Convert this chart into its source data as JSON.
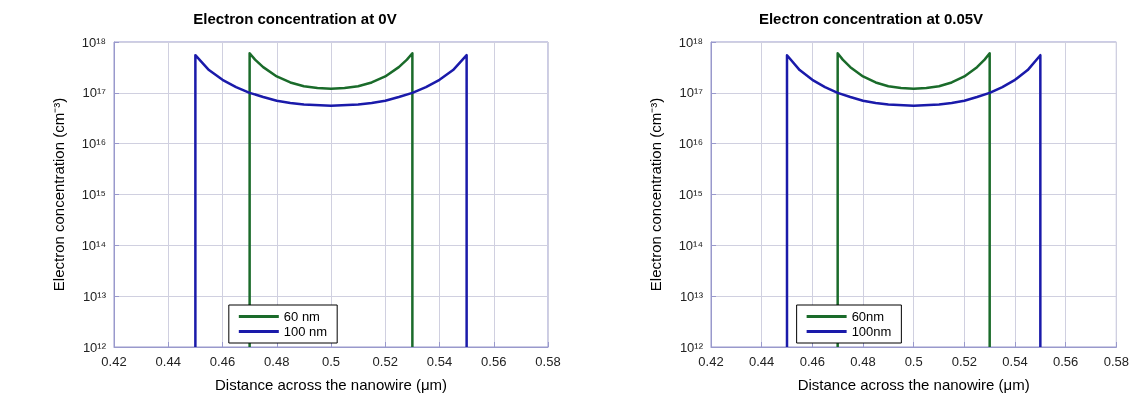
{
  "chart_data": [
    {
      "type": "line",
      "title": "Electron concentration at 0V",
      "xlabel": "Distance across the nanowire (μm)",
      "ylabel": "Electron concentration (cm⁻³)",
      "log": "y",
      "grid": true,
      "legend": "bottom",
      "line_style": "solid",
      "marker": "none",
      "xlim": [
        0.42,
        0.58
      ],
      "xticks": [
        0.42,
        0.44,
        0.46,
        0.48,
        0.5,
        0.52,
        0.54,
        0.56,
        0.58
      ],
      "ylim": [
        1000000000000.0,
        1e+18
      ],
      "yticks": [
        {
          "value": 1000000000000.0,
          "label": "10¹²"
        },
        {
          "value": 10000000000000.0,
          "label": "10¹³"
        },
        {
          "value": 100000000000000.0,
          "label": "10¹⁴"
        },
        {
          "value": 1000000000000000.0,
          "label": "10¹⁵"
        },
        {
          "value": 1e+16,
          "label": "10¹⁶"
        },
        {
          "value": 1e+17,
          "label": "10¹⁷"
        },
        {
          "value": 1e+18,
          "label": "10¹⁸"
        }
      ],
      "series": [
        {
          "name": "60 nm",
          "color": "#1a6b2a",
          "x": [
            0.47,
            0.47,
            0.472,
            0.475,
            0.48,
            0.485,
            0.49,
            0.495,
            0.5,
            0.505,
            0.51,
            0.515,
            0.52,
            0.525,
            0.528,
            0.53,
            0.53
          ],
          "values": [
            1000000000000.0,
            6e+17,
            4.5e+17,
            3.2e+17,
            2.1e+17,
            1.6e+17,
            1.35e+17,
            1.25e+17,
            1.2e+17,
            1.25e+17,
            1.35e+17,
            1.6e+17,
            2.1e+17,
            3.2e+17,
            4.5e+17,
            6e+17,
            1000000000000.0
          ]
        },
        {
          "name": "100 nm",
          "color": "#1a1aaa",
          "x": [
            0.45,
            0.45,
            0.455,
            0.46,
            0.465,
            0.47,
            0.475,
            0.48,
            0.485,
            0.49,
            0.5,
            0.51,
            0.515,
            0.52,
            0.525,
            0.53,
            0.535,
            0.54,
            0.545,
            0.55,
            0.55
          ],
          "values": [
            1000000000000.0,
            5.5e+17,
            2.8e+17,
            1.8e+17,
            1.3e+17,
            1e+17,
            8.3e+16,
            7e+16,
            6.3e+16,
            5.9e+16,
            5.6e+16,
            5.9e+16,
            6.3e+16,
            7e+16,
            8.3e+16,
            1e+17,
            1.3e+17,
            1.8e+17,
            2.8e+17,
            5.5e+17,
            1000000000000.0
          ]
        }
      ]
    },
    {
      "type": "line",
      "title": "Electron concentration at 0.05V",
      "xlabel": "Distance across the nanowire (μm)",
      "ylabel": "Electron concentration (cm⁻³)",
      "log": "y",
      "grid": true,
      "legend": "bottom",
      "line_style": "solid",
      "marker": "none",
      "xlim": [
        0.42,
        0.58
      ],
      "xticks": [
        0.42,
        0.44,
        0.46,
        0.48,
        0.5,
        0.52,
        0.54,
        0.56,
        0.58
      ],
      "ylim": [
        1000000000000.0,
        1e+18
      ],
      "yticks": [
        {
          "value": 1000000000000.0,
          "label": "10¹²"
        },
        {
          "value": 10000000000000.0,
          "label": "10¹³"
        },
        {
          "value": 100000000000000.0,
          "label": "10¹⁴"
        },
        {
          "value": 1000000000000000.0,
          "label": "10¹⁵"
        },
        {
          "value": 1e+16,
          "label": "10¹⁶"
        },
        {
          "value": 1e+17,
          "label": "10¹⁷"
        },
        {
          "value": 1e+18,
          "label": "10¹⁸"
        }
      ],
      "series": [
        {
          "name": "60nm",
          "color": "#1a6b2a",
          "x": [
            0.47,
            0.47,
            0.472,
            0.475,
            0.48,
            0.485,
            0.49,
            0.495,
            0.5,
            0.505,
            0.51,
            0.515,
            0.52,
            0.525,
            0.528,
            0.53,
            0.53
          ],
          "values": [
            1000000000000.0,
            6e+17,
            4.5e+17,
            3.2e+17,
            2.1e+17,
            1.6e+17,
            1.35e+17,
            1.25e+17,
            1.2e+17,
            1.25e+17,
            1.35e+17,
            1.6e+17,
            2.1e+17,
            3.2e+17,
            4.5e+17,
            6e+17,
            1000000000000.0
          ]
        },
        {
          "name": "100nm",
          "color": "#1a1aaa",
          "x": [
            0.45,
            0.45,
            0.455,
            0.46,
            0.465,
            0.47,
            0.475,
            0.48,
            0.485,
            0.49,
            0.5,
            0.51,
            0.515,
            0.52,
            0.525,
            0.53,
            0.535,
            0.54,
            0.545,
            0.55,
            0.55
          ],
          "values": [
            1000000000000.0,
            5.5e+17,
            2.8e+17,
            1.8e+17,
            1.3e+17,
            1e+17,
            8.3e+16,
            7e+16,
            6.3e+16,
            5.9e+16,
            5.6e+16,
            5.9e+16,
            6.3e+16,
            7e+16,
            8.3e+16,
            1e+17,
            1.3e+17,
            1.8e+17,
            2.8e+17,
            5.5e+17,
            1000000000000.0
          ]
        }
      ]
    }
  ]
}
